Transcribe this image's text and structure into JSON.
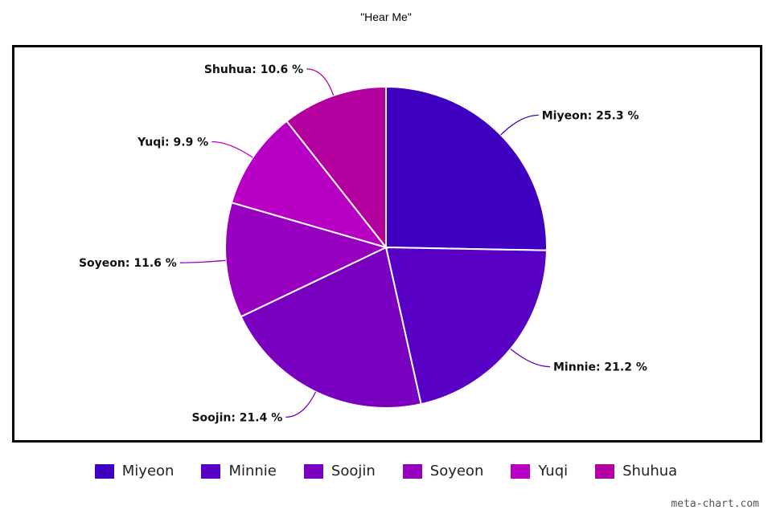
{
  "chart_data": {
    "type": "pie",
    "title": "\"Hear Me\"",
    "slices": [
      {
        "name": "Miyeon",
        "value": 25.3,
        "label": "Miyeon: 25.3 %",
        "color": "#4000c0"
      },
      {
        "name": "Minnie",
        "value": 21.2,
        "label": "Minnie: 21.2 %",
        "color": "#5800c4"
      },
      {
        "name": "Soojin",
        "value": 21.4,
        "label": "Soojin: 21.4 %",
        "color": "#7a00c0"
      },
      {
        "name": "Soyeon",
        "value": 11.6,
        "label": "Soyeon: 11.6 %",
        "color": "#9800c0"
      },
      {
        "name": "Yuqi",
        "value": 9.9,
        "label": "Yuqi: 9.9 %",
        "color": "#b800c4"
      },
      {
        "name": "Shuhua",
        "value": 10.6,
        "label": "Shuhua: 10.6 %",
        "color": "#b4009e"
      }
    ],
    "legend_position": "bottom"
  },
  "watermark": "meta-chart.com"
}
